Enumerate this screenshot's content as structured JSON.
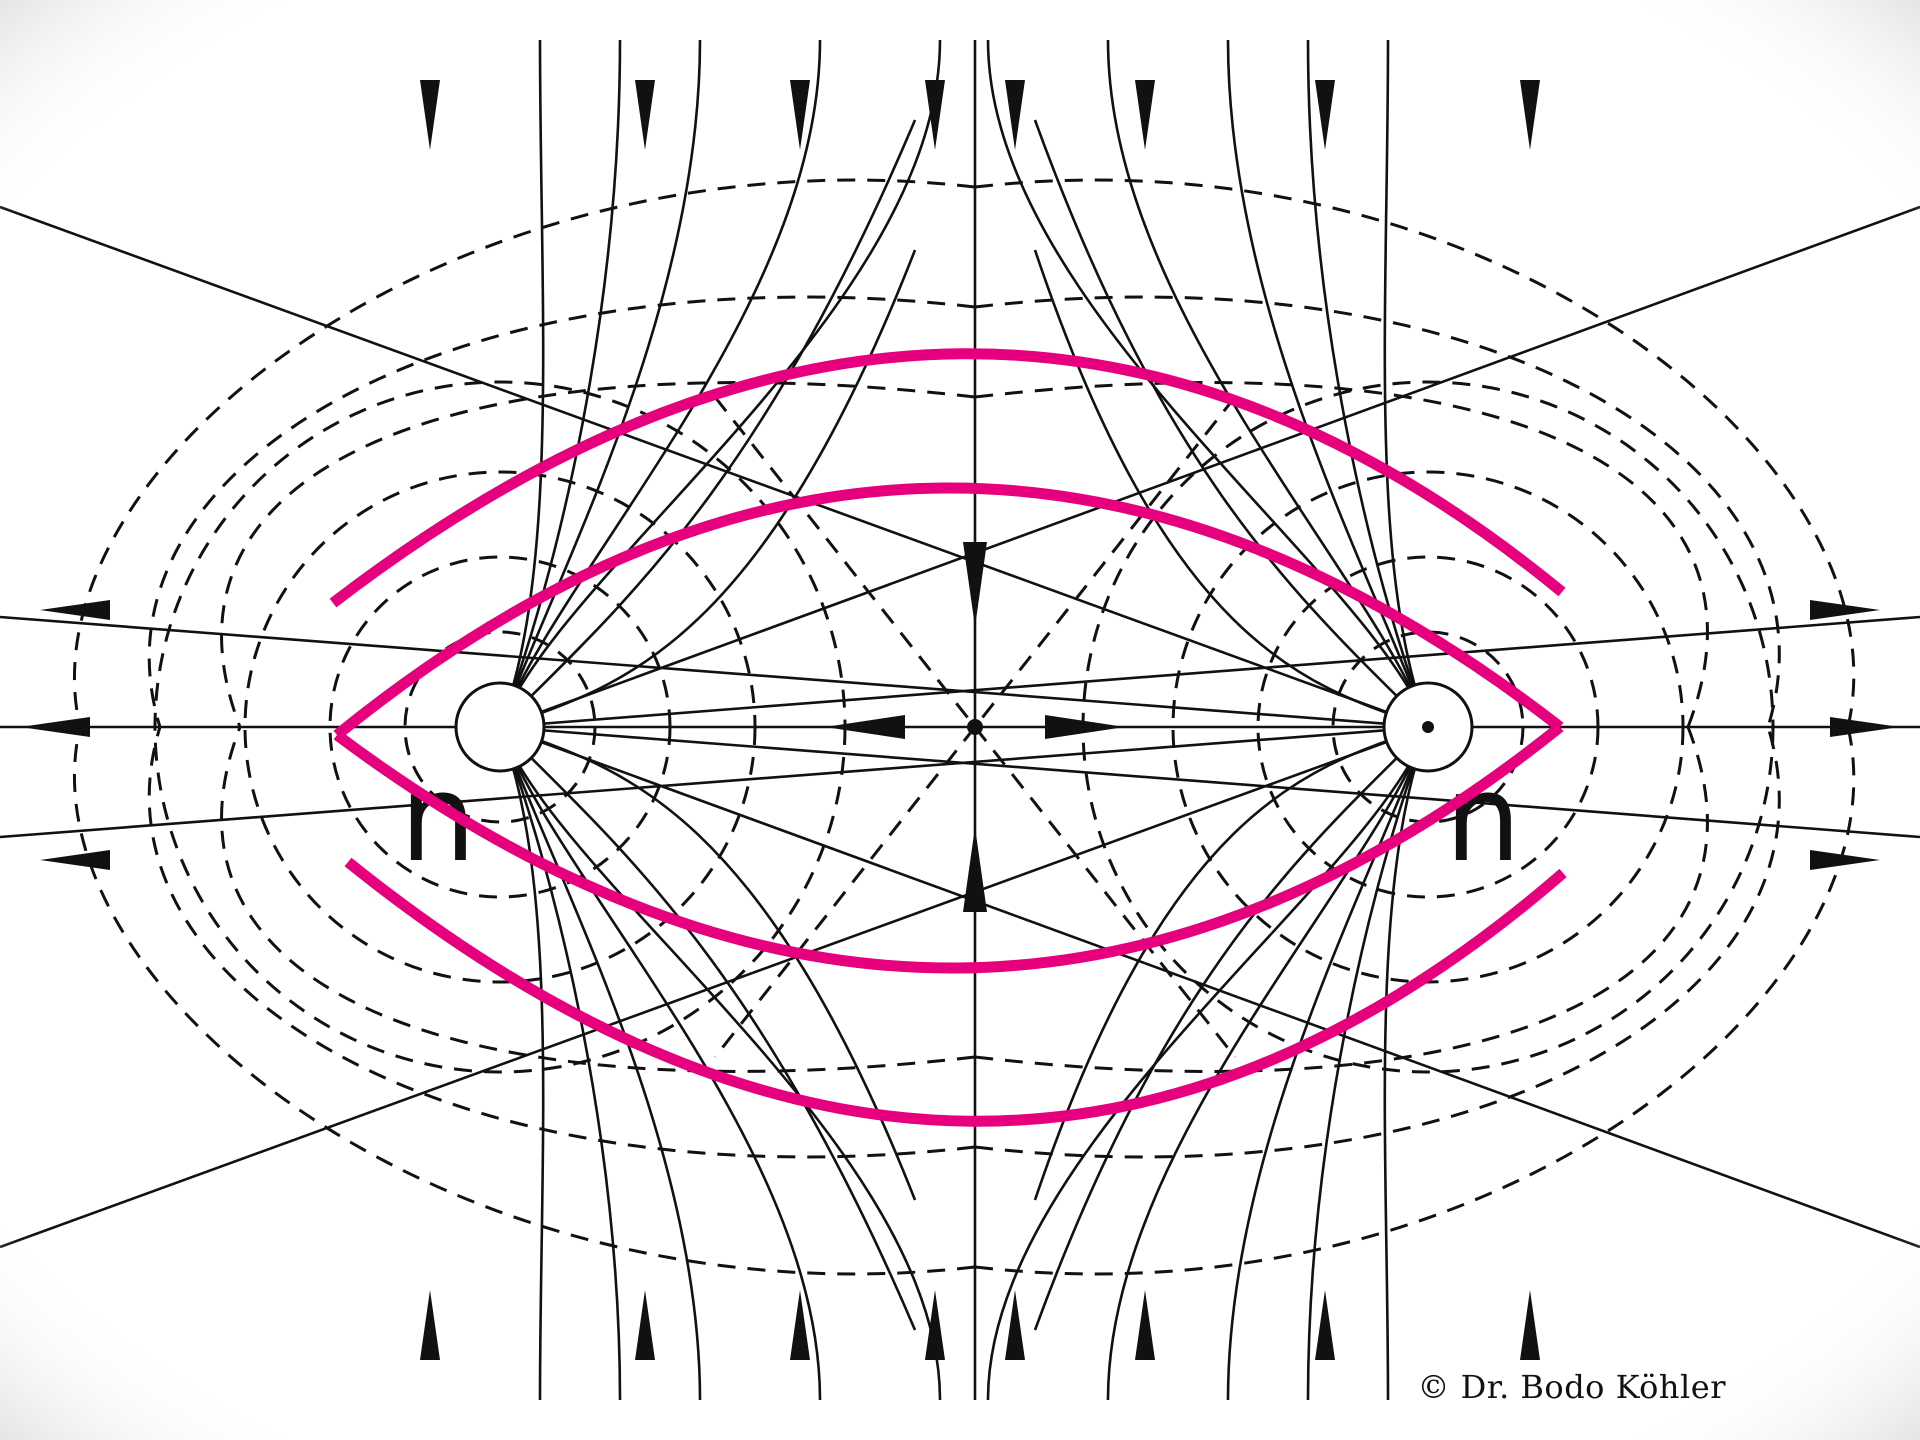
{
  "diagram": {
    "pole_left_label": "n",
    "pole_right_label": "n",
    "colors": {
      "background": "#ffffff",
      "line": "#111111",
      "overlay": "#e6007e",
      "vignette": "#c8c8c8"
    }
  },
  "footer": {
    "copyright": "© Dr. Bodo Köhler"
  }
}
